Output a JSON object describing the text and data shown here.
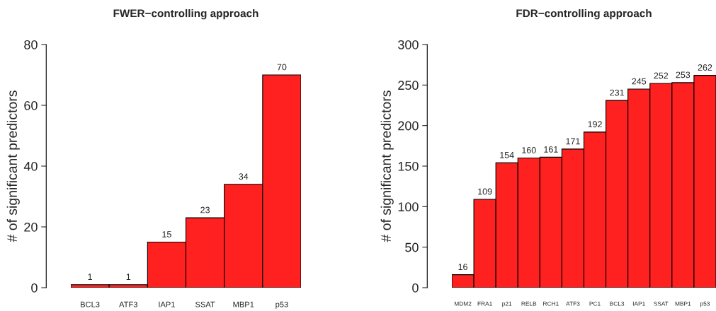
{
  "chart_data": [
    {
      "type": "bar",
      "title": "FWER−controlling approach",
      "ylabel": "# of significant predictors",
      "categories": [
        "BCL3",
        "ATF3",
        "IAP1",
        "SSAT",
        "MBP1",
        "p53"
      ],
      "values": [
        1,
        1,
        15,
        23,
        34,
        70
      ],
      "color": "#ff2020",
      "ylim": [
        0,
        80
      ],
      "yticks": [
        0,
        20,
        40,
        60,
        80
      ],
      "data_labels": true,
      "grid": false,
      "legend": false
    },
    {
      "type": "bar",
      "title": "FDR−controlling approach",
      "ylabel": "# of significant predictors",
      "categories": [
        "MDM2",
        "FRA1",
        "p21",
        "RELB",
        "RCH1",
        "ATF3",
        "PC1",
        "BCL3",
        "IAP1",
        "SSAT",
        "MBP1",
        "p53"
      ],
      "values": [
        16,
        109,
        154,
        160,
        161,
        171,
        192,
        231,
        245,
        252,
        253,
        262
      ],
      "color": "#ff2020",
      "ylim": [
        0,
        300
      ],
      "yticks": [
        0,
        50,
        100,
        150,
        200,
        250,
        300
      ],
      "data_labels": true,
      "grid": false,
      "legend": false
    }
  ]
}
